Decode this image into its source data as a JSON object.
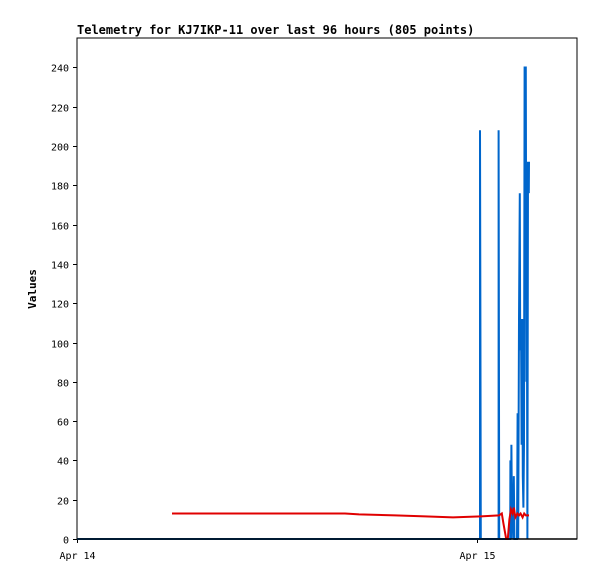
{
  "chart_data": {
    "type": "line",
    "title": "Telemetry for KJ7IKP-11 over last 96 hours (805 points)",
    "xlabel": "",
    "ylabel": "Values",
    "x_range": [
      0,
      1.25
    ],
    "x_unit": "days after Apr 14",
    "x_ticks": [
      {
        "value": 0,
        "label": "Apr 14"
      },
      {
        "value": 1,
        "label": "Apr 15"
      }
    ],
    "ylim": [
      0,
      255
    ],
    "y_ticks": [
      0,
      20,
      40,
      60,
      80,
      100,
      120,
      140,
      160,
      180,
      200,
      220,
      240
    ],
    "grid": false,
    "legend": "none",
    "series": [
      {
        "color": "#0066cc",
        "points": [
          [
            0.0,
            0
          ],
          [
            1.0075,
            0
          ],
          [
            1.0075,
            208
          ],
          [
            1.0085,
            112
          ],
          [
            1.0095,
            0
          ],
          [
            1.054,
            0
          ],
          [
            1.054,
            208
          ],
          [
            1.0555,
            0
          ],
          [
            1.083,
            0
          ],
          [
            1.0835,
            40
          ],
          [
            1.085,
            0
          ],
          [
            1.086,
            48
          ],
          [
            1.0875,
            10
          ],
          [
            1.089,
            12
          ],
          [
            1.0905,
            0
          ],
          [
            1.092,
            32
          ],
          [
            1.0935,
            0
          ],
          [
            1.1,
            0
          ],
          [
            1.1015,
            64
          ],
          [
            1.103,
            0
          ],
          [
            1.105,
            112
          ],
          [
            1.107,
            176
          ],
          [
            1.108,
            96
          ],
          [
            1.11,
            112
          ],
          [
            1.1115,
            48
          ],
          [
            1.113,
            112
          ],
          [
            1.1145,
            32
          ],
          [
            1.116,
            16
          ],
          [
            1.1175,
            48
          ],
          [
            1.119,
            240
          ],
          [
            1.121,
            240
          ],
          [
            1.122,
            240
          ],
          [
            1.1235,
            80
          ],
          [
            1.1245,
            144
          ],
          [
            1.126,
            0
          ],
          [
            1.1275,
            192
          ],
          [
            1.1295,
            176
          ],
          [
            1.13,
            192
          ]
        ]
      },
      {
        "color": "#e00000",
        "points": [
          [
            0.2375,
            13
          ],
          [
            0.67,
            13
          ],
          [
            0.705,
            12.5
          ],
          [
            0.795,
            12
          ],
          [
            0.87,
            11.5
          ],
          [
            0.94,
            11
          ],
          [
            1.01,
            11.5
          ],
          [
            1.055,
            12
          ],
          [
            1.062,
            13
          ],
          [
            1.066,
            8
          ],
          [
            1.073,
            0
          ],
          [
            1.077,
            0
          ],
          [
            1.081,
            10
          ],
          [
            1.085,
            15
          ],
          [
            1.089,
            13
          ],
          [
            1.092,
            16
          ],
          [
            1.096,
            11
          ],
          [
            1.101,
            13
          ],
          [
            1.105,
            12
          ],
          [
            1.109,
            13
          ],
          [
            1.114,
            11
          ],
          [
            1.118,
            13
          ],
          [
            1.122,
            12
          ],
          [
            1.126,
            12
          ],
          [
            1.13,
            12
          ]
        ]
      },
      {
        "color": "#000000",
        "points": [
          [
            0.0,
            0
          ],
          [
            1.25,
            0
          ]
        ]
      }
    ]
  }
}
